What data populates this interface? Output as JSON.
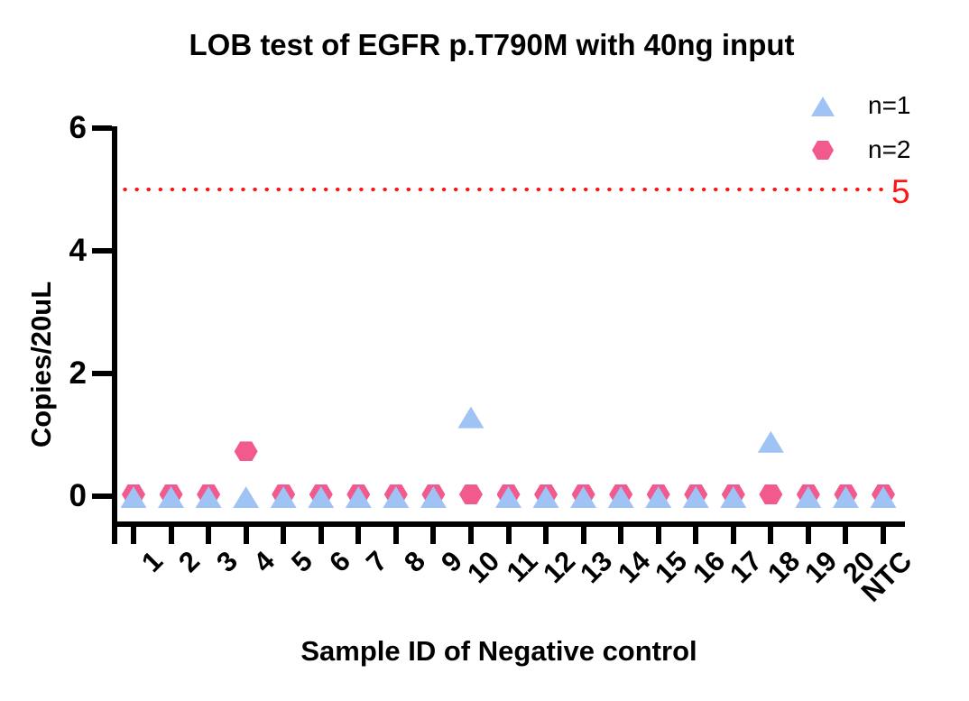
{
  "chart_data": {
    "type": "scatter",
    "title": "LOB test of EGFR p.T790M with 40ng input",
    "xlabel": "Sample ID of Negative control",
    "ylabel": "Copies/20uL",
    "categories": [
      "1",
      "2",
      "3",
      "4",
      "5",
      "6",
      "7",
      "8",
      "9",
      "10",
      "11",
      "12",
      "13",
      "14",
      "15",
      "16",
      "17",
      "18",
      "19",
      "20",
      "NTC"
    ],
    "yticks": [
      0,
      2,
      4,
      6
    ],
    "ylim": [
      0,
      6
    ],
    "grid": false,
    "legend_position": "top-right",
    "series": [
      {
        "name": "n=1",
        "marker": "triangle",
        "color": "#9EC3F4",
        "values": [
          0,
          0,
          0,
          0,
          0,
          0,
          0,
          0,
          0,
          1.3,
          0,
          0,
          0,
          0,
          0,
          0,
          0,
          0.9,
          0,
          0,
          0
        ]
      },
      {
        "name": "n=2",
        "marker": "hexagon",
        "color": "#F2598C",
        "values": [
          0,
          0,
          0,
          0.7,
          0,
          0,
          0,
          0,
          0,
          0,
          0,
          0,
          0,
          0,
          0,
          0,
          0,
          0,
          0,
          0,
          0
        ]
      }
    ],
    "threshold_line": {
      "value": 5,
      "label": "5",
      "color": "#FF1414",
      "style": "dotted"
    }
  }
}
